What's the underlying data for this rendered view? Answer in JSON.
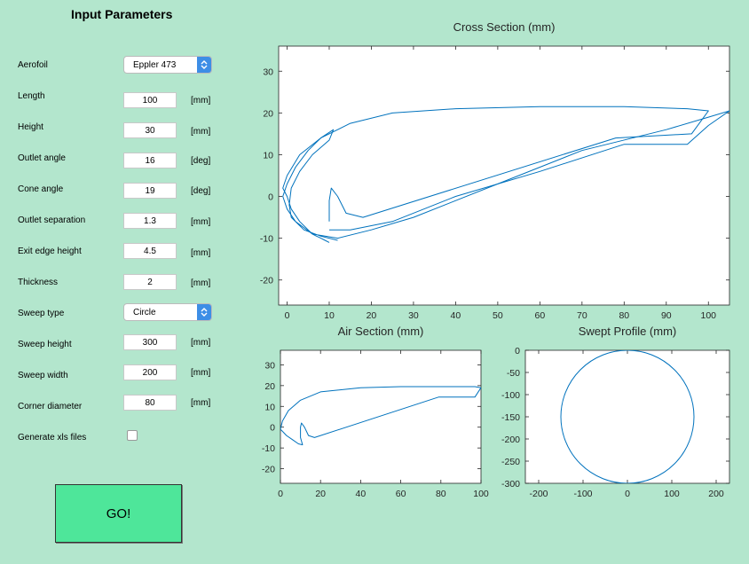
{
  "panel_title": "Input Parameters",
  "params": {
    "aerofoil": {
      "label": "Aerofoil",
      "value": "Eppler 473"
    },
    "length": {
      "label": "Length",
      "value": "100",
      "unit": "[mm]"
    },
    "height": {
      "label": "Height",
      "value": "30",
      "unit": "[mm]"
    },
    "outlet_angle": {
      "label": "Outlet angle",
      "value": "16",
      "unit": "[deg]"
    },
    "cone_angle": {
      "label": "Cone angle",
      "value": "19",
      "unit": "[deg]"
    },
    "outlet_separation": {
      "label": "Outlet separation",
      "value": "1.3",
      "unit": "[mm]"
    },
    "exit_edge_height": {
      "label": "Exit edge height",
      "value": "4.5",
      "unit": "[mm]"
    },
    "thickness": {
      "label": "Thickness",
      "value": "2",
      "unit": "[mm]"
    },
    "sweep_type": {
      "label": "Sweep type",
      "value": "Circle"
    },
    "sweep_height": {
      "label": "Sweep height",
      "value": "300",
      "unit": "[mm]"
    },
    "sweep_width": {
      "label": "Sweep width",
      "value": "200",
      "unit": "[mm]"
    },
    "corner_diameter": {
      "label": "Corner diameter",
      "value": "80",
      "unit": "[mm]"
    },
    "generate_xls": {
      "label": "Generate xls files",
      "checked": false
    }
  },
  "go_label": "GO!",
  "icons": {
    "dropdown": "chevron-updown-icon"
  },
  "colors": {
    "background": "#b3e6cd",
    "line": "#0072bd",
    "go_button": "#4ee69a"
  },
  "chart_data": [
    {
      "type": "line",
      "title": "Cross Section (mm)",
      "xlim": [
        -2,
        105
      ],
      "ylim": [
        -26,
        36
      ],
      "xticks": [
        "0",
        "10",
        "20",
        "30",
        "40",
        "50",
        "60",
        "70",
        "80",
        "90",
        "100"
      ],
      "yticks": [
        "30",
        "20",
        "10",
        "0",
        "-10",
        "-20"
      ],
      "grid": false,
      "series": [
        {
          "x": [
            12,
            8,
            4,
            1,
            0.5,
            1,
            3,
            6,
            10,
            11,
            8,
            5,
            2,
            0,
            -1,
            0,
            2,
            6,
            12,
            20,
            30,
            50,
            70,
            90,
            100,
            105
          ],
          "y": [
            -10.5,
            -9.5,
            -8,
            -5,
            -2,
            2,
            6,
            10,
            13.5,
            16,
            14,
            11,
            7,
            3,
            0,
            -3,
            -6,
            -9,
            -10,
            -8,
            -5,
            3,
            11,
            16,
            19,
            20.5
          ]
        },
        {
          "x": [
            10,
            9,
            8,
            7,
            6,
            5,
            3,
            1,
            0,
            -1,
            0,
            3,
            8,
            15,
            25,
            40,
            60,
            80,
            95,
            100,
            96,
            78,
            18,
            14,
            12,
            10.5,
            10,
            10
          ],
          "y": [
            -11,
            -10.5,
            -10,
            -9.5,
            -9,
            -8,
            -6,
            -3,
            0,
            2,
            5,
            10,
            14,
            17.5,
            20,
            21,
            21.5,
            21.5,
            21,
            20.5,
            15,
            14,
            -5,
            -4,
            0,
            2,
            -1,
            -6
          ]
        },
        {
          "x": [
            10,
            15,
            25,
            40,
            60,
            80,
            95,
            100,
            105
          ],
          "y": [
            -8,
            -8,
            -6,
            0,
            6,
            12.5,
            12.5,
            17,
            20.5
          ]
        }
      ]
    },
    {
      "type": "line",
      "title": "Air Section (mm)",
      "xlim": [
        0,
        100
      ],
      "ylim": [
        -27,
        37
      ],
      "xticks": [
        "0",
        "20",
        "40",
        "60",
        "80",
        "100"
      ],
      "yticks": [
        "30",
        "20",
        "10",
        "0",
        "-10",
        "-20"
      ],
      "grid": false,
      "series": [
        {
          "x": [
            0,
            1,
            4,
            10,
            20,
            40,
            60,
            80,
            97,
            100,
            97,
            79,
            17,
            14,
            12,
            10.5,
            10,
            10,
            11,
            9,
            6,
            3,
            1,
            0
          ],
          "y": [
            -1,
            3,
            8,
            13,
            17,
            19,
            19.5,
            19.5,
            19.5,
            19,
            14.5,
            14.5,
            -5,
            -4,
            0,
            2,
            0,
            -5,
            -8.5,
            -8,
            -6,
            -4,
            -2,
            -1
          ]
        }
      ]
    },
    {
      "type": "line",
      "title": "Swept Profile (mm)",
      "xlim": [
        -230,
        230
      ],
      "ylim": [
        -300,
        0
      ],
      "xticks": [
        "-200",
        "-100",
        "0",
        "100",
        "200"
      ],
      "yticks": [
        "0",
        "-50",
        "-100",
        "-150",
        "-200",
        "-250",
        "-300"
      ],
      "grid": false,
      "series": [
        {
          "shape": "circle",
          "center": [
            0,
            -150
          ],
          "radius": 150
        }
      ]
    }
  ]
}
